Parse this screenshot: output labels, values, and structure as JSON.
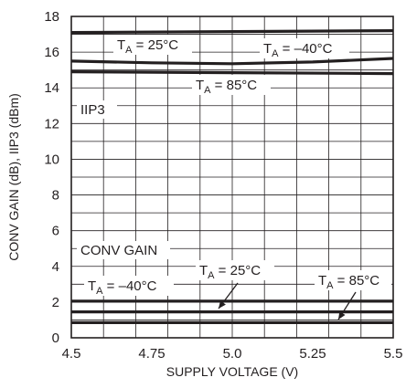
{
  "chart_data": {
    "type": "line",
    "xlabel": "SUPPLY VOLTAGE (V)",
    "ylabel": "CONV GAIN (dB), IIP3 (dBm)",
    "xlim": [
      4.5,
      5.5
    ],
    "ylim": [
      0,
      18
    ],
    "xticks": [
      "4.5",
      "4.75",
      "5.0",
      "5.25",
      "5.5"
    ],
    "yticks": [
      "0",
      "2",
      "4",
      "6",
      "8",
      "10",
      "12",
      "14",
      "16",
      "18"
    ],
    "grid": true,
    "series": [
      {
        "group": "IIP3",
        "temp": "25",
        "x": [
          4.5,
          5.5
        ],
        "y": [
          17.1,
          17.2
        ]
      },
      {
        "group": "IIP3",
        "temp": "-40",
        "x": [
          4.5,
          4.75,
          5.0,
          5.25,
          5.5
        ],
        "y": [
          15.5,
          15.4,
          15.35,
          15.45,
          15.65
        ]
      },
      {
        "group": "IIP3",
        "temp": "85",
        "x": [
          4.5,
          5.0,
          5.5
        ],
        "y": [
          14.9,
          14.85,
          14.8
        ]
      },
      {
        "group": "CONV GAIN",
        "temp": "-40",
        "x": [
          4.5,
          5.5
        ],
        "y": [
          2.05,
          2.05
        ]
      },
      {
        "group": "CONV GAIN",
        "temp": "25",
        "x": [
          4.5,
          5.5
        ],
        "y": [
          1.45,
          1.45
        ]
      },
      {
        "group": "CONV GAIN",
        "temp": "85",
        "x": [
          4.5,
          5.5
        ],
        "y": [
          0.85,
          0.85
        ]
      }
    ],
    "annotations": {
      "iip3_label": "IIP3",
      "gain_label": "CONV GAIN",
      "t_prefix": "T",
      "t_sub": "A",
      "temp_25": " = 25°C",
      "temp_m40": " = –40°C",
      "temp_85": " = 85°C"
    }
  }
}
